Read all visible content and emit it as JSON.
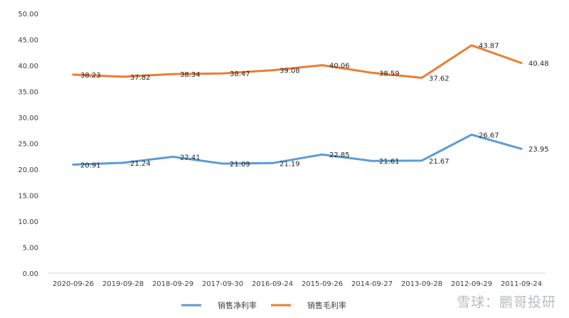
{
  "chart_data": {
    "type": "line",
    "categories": [
      "2020-09-26",
      "2019-09-28",
      "2018-09-29",
      "2017-09-30",
      "2016-09-24",
      "2015-09-26",
      "2014-09-27",
      "2013-09-28",
      "2012-09-29",
      "2011-09-24"
    ],
    "series": [
      {
        "name": "销售净利率",
        "color": "#5b9bd5",
        "values": [
          20.91,
          21.24,
          22.41,
          21.09,
          21.19,
          22.85,
          21.61,
          21.67,
          26.67,
          23.95
        ],
        "labels": [
          "20.91",
          "21.24",
          "22.41",
          "21.09",
          "21.19",
          "22.85",
          "21.61",
          "21.67",
          "26.67",
          "23.95"
        ]
      },
      {
        "name": "销售毛利率",
        "color": "#ed7d31",
        "values": [
          38.23,
          37.82,
          38.34,
          38.47,
          39.08,
          40.06,
          38.59,
          37.62,
          43.87,
          40.48
        ],
        "labels": [
          "38.23",
          "37.82",
          "38.34",
          "38.47",
          "39.08",
          "40.06",
          "38.59",
          "37.62",
          "43.87",
          "40.48"
        ]
      }
    ],
    "yticks": [
      "0.00",
      "5.00",
      "10.00",
      "15.00",
      "20.00",
      "25.00",
      "30.00",
      "35.00",
      "40.00",
      "45.00",
      "50.00"
    ],
    "ylim": [
      0,
      50
    ],
    "grid": false,
    "legend_position": "bottom"
  },
  "watermark": "雪球：鹏哥投研"
}
